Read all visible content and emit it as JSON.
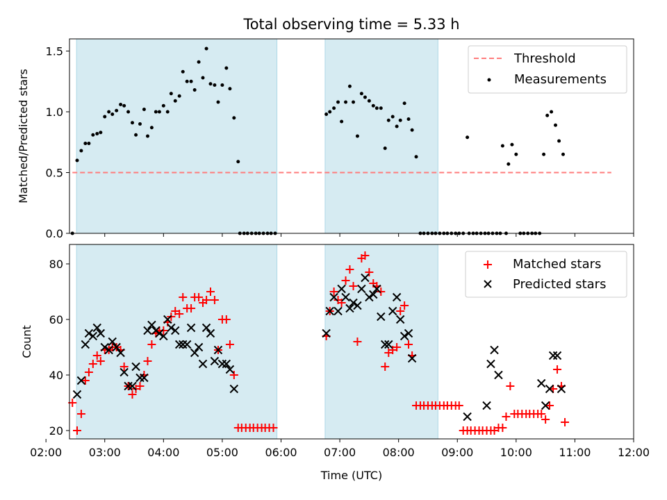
{
  "chart_data": {
    "type": "scatter",
    "title": "Total observing time = 5.33 h",
    "xlabel": "Time (UTC)",
    "xlim": [
      2.4,
      12.0
    ],
    "xticks": [
      2,
      3,
      4,
      5,
      6,
      7,
      8,
      9,
      10,
      11,
      12
    ],
    "xtick_labels": [
      "02:00",
      "03:00",
      "04:00",
      "05:00",
      "06:00",
      "07:00",
      "08:00",
      "09:00",
      "10:00",
      "11:00",
      "12:00"
    ],
    "shaded_intervals": [
      [
        2.52,
        5.93
      ],
      [
        6.75,
        8.67
      ]
    ],
    "shade_color": "#add8e6",
    "top": {
      "ylabel": "Matched/Predicted stars",
      "ylim": [
        0,
        1.6
      ],
      "yticks": [
        0.0,
        0.5,
        1.0,
        1.5
      ],
      "ytick_labels": [
        "0.0",
        "0.5",
        "1.0",
        "1.5"
      ],
      "legend_position": "top-right",
      "threshold": {
        "name": "Threshold",
        "y": 0.5,
        "x_range": [
          2.45,
          11.62
        ],
        "color": "#ff7b7b"
      },
      "measurements": {
        "name": "Measurements",
        "color": "#000000",
        "points": [
          [
            2.45,
            0.0
          ],
          [
            2.53,
            0.6
          ],
          [
            2.6,
            0.68
          ],
          [
            2.67,
            0.74
          ],
          [
            2.73,
            0.74
          ],
          [
            2.8,
            0.81
          ],
          [
            2.87,
            0.82
          ],
          [
            2.93,
            0.83
          ],
          [
            3.0,
            0.96
          ],
          [
            3.07,
            1.0
          ],
          [
            3.13,
            0.98
          ],
          [
            3.2,
            1.01
          ],
          [
            3.27,
            1.06
          ],
          [
            3.33,
            1.05
          ],
          [
            3.4,
            1.0
          ],
          [
            3.47,
            0.91
          ],
          [
            3.53,
            0.81
          ],
          [
            3.6,
            0.9
          ],
          [
            3.67,
            1.02
          ],
          [
            3.73,
            0.8
          ],
          [
            3.8,
            0.87
          ],
          [
            3.87,
            1.0
          ],
          [
            3.93,
            1.0
          ],
          [
            4.0,
            1.05
          ],
          [
            4.07,
            1.0
          ],
          [
            4.13,
            1.15
          ],
          [
            4.2,
            1.09
          ],
          [
            4.27,
            1.13
          ],
          [
            4.33,
            1.33
          ],
          [
            4.4,
            1.25
          ],
          [
            4.47,
            1.25
          ],
          [
            4.53,
            1.18
          ],
          [
            4.6,
            1.41
          ],
          [
            4.67,
            1.28
          ],
          [
            4.73,
            1.52
          ],
          [
            4.8,
            1.23
          ],
          [
            4.87,
            1.22
          ],
          [
            4.93,
            1.08
          ],
          [
            5.0,
            1.22
          ],
          [
            5.07,
            1.36
          ],
          [
            5.13,
            1.19
          ],
          [
            5.2,
            0.95
          ],
          [
            5.27,
            0.59
          ],
          [
            5.3,
            0.0
          ],
          [
            5.37,
            0.0
          ],
          [
            5.43,
            0.0
          ],
          [
            5.5,
            0.0
          ],
          [
            5.57,
            0.0
          ],
          [
            5.63,
            0.0
          ],
          [
            5.7,
            0.0
          ],
          [
            5.77,
            0.0
          ],
          [
            5.83,
            0.0
          ],
          [
            5.9,
            0.0
          ],
          [
            6.77,
            0.98
          ],
          [
            6.83,
            1.0
          ],
          [
            6.9,
            1.03
          ],
          [
            6.97,
            1.08
          ],
          [
            7.03,
            0.92
          ],
          [
            7.1,
            1.08
          ],
          [
            7.17,
            1.21
          ],
          [
            7.23,
            1.08
          ],
          [
            7.3,
            0.8
          ],
          [
            7.37,
            1.15
          ],
          [
            7.43,
            1.12
          ],
          [
            7.5,
            1.09
          ],
          [
            7.57,
            1.05
          ],
          [
            7.63,
            1.03
          ],
          [
            7.7,
            1.03
          ],
          [
            7.77,
            0.7
          ],
          [
            7.83,
            0.93
          ],
          [
            7.9,
            0.96
          ],
          [
            7.97,
            0.88
          ],
          [
            8.03,
            0.93
          ],
          [
            8.1,
            1.07
          ],
          [
            8.17,
            0.94
          ],
          [
            8.23,
            0.85
          ],
          [
            8.3,
            0.63
          ],
          [
            8.37,
            0.0
          ],
          [
            8.43,
            0.0
          ],
          [
            8.5,
            0.0
          ],
          [
            8.57,
            0.0
          ],
          [
            8.63,
            0.0
          ],
          [
            8.7,
            0.0
          ],
          [
            8.77,
            0.0
          ],
          [
            8.83,
            0.0
          ],
          [
            8.9,
            0.0
          ],
          [
            8.97,
            0.0
          ],
          [
            9.03,
            0.0
          ],
          [
            9.1,
            0.0
          ],
          [
            9.17,
            0.79
          ],
          [
            9.2,
            0.0
          ],
          [
            9.27,
            0.0
          ],
          [
            9.33,
            0.0
          ],
          [
            9.4,
            0.0
          ],
          [
            9.47,
            0.0
          ],
          [
            9.53,
            0.0
          ],
          [
            9.6,
            0.0
          ],
          [
            9.67,
            0.0
          ],
          [
            9.73,
            0.0
          ],
          [
            9.77,
            0.72
          ],
          [
            9.83,
            0.0
          ],
          [
            9.87,
            0.57
          ],
          [
            9.93,
            0.73
          ],
          [
            10.0,
            0.65
          ],
          [
            10.07,
            0.0
          ],
          [
            10.13,
            0.0
          ],
          [
            10.2,
            0.0
          ],
          [
            10.27,
            0.0
          ],
          [
            10.33,
            0.0
          ],
          [
            10.4,
            0.0
          ],
          [
            10.47,
            0.65
          ],
          [
            10.53,
            0.97
          ],
          [
            10.6,
            1.0
          ],
          [
            10.67,
            0.89
          ],
          [
            10.73,
            0.76
          ],
          [
            10.8,
            0.65
          ]
        ]
      }
    },
    "bottom": {
      "ylabel": "Count",
      "ylim": [
        17,
        87
      ],
      "yticks": [
        20,
        40,
        60,
        80
      ],
      "ytick_labels": [
        "20",
        "40",
        "60",
        "80"
      ],
      "legend_position": "top-right",
      "matched": {
        "name": "Matched stars",
        "color": "#ff0000",
        "points": [
          [
            2.45,
            30
          ],
          [
            2.53,
            20
          ],
          [
            2.6,
            26
          ],
          [
            2.67,
            38
          ],
          [
            2.73,
            41
          ],
          [
            2.8,
            44
          ],
          [
            2.87,
            47
          ],
          [
            2.93,
            45
          ],
          [
            3.0,
            49
          ],
          [
            3.07,
            49
          ],
          [
            3.13,
            50
          ],
          [
            3.2,
            50
          ],
          [
            3.27,
            49
          ],
          [
            3.33,
            43
          ],
          [
            3.4,
            36
          ],
          [
            3.47,
            33
          ],
          [
            3.53,
            35
          ],
          [
            3.6,
            36
          ],
          [
            3.67,
            40
          ],
          [
            3.73,
            45
          ],
          [
            3.8,
            51
          ],
          [
            3.87,
            55
          ],
          [
            3.93,
            56
          ],
          [
            4.0,
            56
          ],
          [
            4.07,
            59
          ],
          [
            4.13,
            61
          ],
          [
            4.2,
            63
          ],
          [
            4.27,
            62
          ],
          [
            4.33,
            68
          ],
          [
            4.4,
            64
          ],
          [
            4.47,
            64
          ],
          [
            4.53,
            68
          ],
          [
            4.6,
            68
          ],
          [
            4.67,
            66
          ],
          [
            4.73,
            67
          ],
          [
            4.8,
            70
          ],
          [
            4.87,
            67
          ],
          [
            4.93,
            49
          ],
          [
            5.0,
            60
          ],
          [
            5.07,
            60
          ],
          [
            5.13,
            51
          ],
          [
            5.2,
            40
          ],
          [
            5.27,
            21
          ],
          [
            5.33,
            21
          ],
          [
            5.4,
            21
          ],
          [
            5.47,
            21
          ],
          [
            5.53,
            21
          ],
          [
            5.6,
            21
          ],
          [
            5.67,
            21
          ],
          [
            5.73,
            21
          ],
          [
            5.8,
            21
          ],
          [
            5.87,
            21
          ],
          [
            6.77,
            54
          ],
          [
            6.83,
            63
          ],
          [
            6.9,
            70
          ],
          [
            6.97,
            67
          ],
          [
            7.03,
            66
          ],
          [
            7.1,
            74
          ],
          [
            7.17,
            78
          ],
          [
            7.23,
            72
          ],
          [
            7.3,
            52
          ],
          [
            7.37,
            82
          ],
          [
            7.43,
            83
          ],
          [
            7.5,
            77
          ],
          [
            7.57,
            73
          ],
          [
            7.63,
            72
          ],
          [
            7.7,
            70
          ],
          [
            7.77,
            43
          ],
          [
            7.83,
            48
          ],
          [
            7.9,
            49
          ],
          [
            7.97,
            50
          ],
          [
            8.03,
            63
          ],
          [
            8.1,
            65
          ],
          [
            8.17,
            51
          ],
          [
            8.23,
            47
          ],
          [
            8.3,
            29
          ],
          [
            8.37,
            29
          ],
          [
            8.43,
            29
          ],
          [
            8.5,
            29
          ],
          [
            8.57,
            29
          ],
          [
            8.63,
            29
          ],
          [
            8.7,
            29
          ],
          [
            8.77,
            29
          ],
          [
            8.83,
            29
          ],
          [
            8.9,
            29
          ],
          [
            8.97,
            29
          ],
          [
            9.03,
            29
          ],
          [
            9.1,
            20
          ],
          [
            9.17,
            20
          ],
          [
            9.23,
            20
          ],
          [
            9.3,
            20
          ],
          [
            9.37,
            20
          ],
          [
            9.43,
            20
          ],
          [
            9.5,
            20
          ],
          [
            9.57,
            20
          ],
          [
            9.63,
            20
          ],
          [
            9.7,
            21
          ],
          [
            9.77,
            21
          ],
          [
            9.83,
            25
          ],
          [
            9.9,
            36
          ],
          [
            9.97,
            26
          ],
          [
            10.03,
            26
          ],
          [
            10.1,
            26
          ],
          [
            10.17,
            26
          ],
          [
            10.23,
            26
          ],
          [
            10.3,
            26
          ],
          [
            10.37,
            26
          ],
          [
            10.43,
            26
          ],
          [
            10.5,
            24
          ],
          [
            10.57,
            29
          ],
          [
            10.63,
            35
          ],
          [
            10.7,
            42
          ],
          [
            10.77,
            36
          ],
          [
            10.83,
            23
          ]
        ]
      },
      "predicted": {
        "name": "Predicted stars",
        "color": "#000000",
        "points": [
          [
            2.53,
            33
          ],
          [
            2.6,
            38
          ],
          [
            2.67,
            51
          ],
          [
            2.73,
            55
          ],
          [
            2.8,
            54
          ],
          [
            2.87,
            57
          ],
          [
            2.93,
            55
          ],
          [
            3.0,
            50
          ],
          [
            3.07,
            49
          ],
          [
            3.13,
            52
          ],
          [
            3.2,
            50
          ],
          [
            3.27,
            48
          ],
          [
            3.33,
            41
          ],
          [
            3.4,
            36
          ],
          [
            3.47,
            36
          ],
          [
            3.53,
            43
          ],
          [
            3.6,
            39
          ],
          [
            3.67,
            39
          ],
          [
            3.73,
            56
          ],
          [
            3.8,
            58
          ],
          [
            3.87,
            56
          ],
          [
            3.93,
            55
          ],
          [
            4.0,
            54
          ],
          [
            4.07,
            60
          ],
          [
            4.13,
            57
          ],
          [
            4.2,
            56
          ],
          [
            4.27,
            51
          ],
          [
            4.33,
            51
          ],
          [
            4.4,
            51
          ],
          [
            4.47,
            57
          ],
          [
            4.53,
            48
          ],
          [
            4.6,
            50
          ],
          [
            4.67,
            44
          ],
          [
            4.73,
            57
          ],
          [
            4.8,
            55
          ],
          [
            4.87,
            45
          ],
          [
            4.93,
            49
          ],
          [
            5.0,
            44
          ],
          [
            5.07,
            44
          ],
          [
            5.13,
            42
          ],
          [
            5.2,
            35
          ],
          [
            6.77,
            55
          ],
          [
            6.83,
            63
          ],
          [
            6.9,
            68
          ],
          [
            6.97,
            63
          ],
          [
            7.03,
            71
          ],
          [
            7.1,
            68
          ],
          [
            7.17,
            64
          ],
          [
            7.23,
            66
          ],
          [
            7.3,
            65
          ],
          [
            7.37,
            71
          ],
          [
            7.43,
            75
          ],
          [
            7.5,
            68
          ],
          [
            7.57,
            69
          ],
          [
            7.63,
            71
          ],
          [
            7.7,
            61
          ],
          [
            7.77,
            51
          ],
          [
            7.83,
            51
          ],
          [
            7.9,
            63
          ],
          [
            7.97,
            68
          ],
          [
            8.03,
            60
          ],
          [
            8.1,
            54
          ],
          [
            8.17,
            55
          ],
          [
            8.23,
            46
          ],
          [
            9.17,
            25
          ],
          [
            9.5,
            29
          ],
          [
            9.57,
            44
          ],
          [
            9.63,
            49
          ],
          [
            9.7,
            40
          ],
          [
            10.43,
            37
          ],
          [
            10.5,
            29
          ],
          [
            10.57,
            35
          ],
          [
            10.63,
            47
          ],
          [
            10.7,
            47
          ],
          [
            10.77,
            35
          ]
        ]
      }
    }
  }
}
